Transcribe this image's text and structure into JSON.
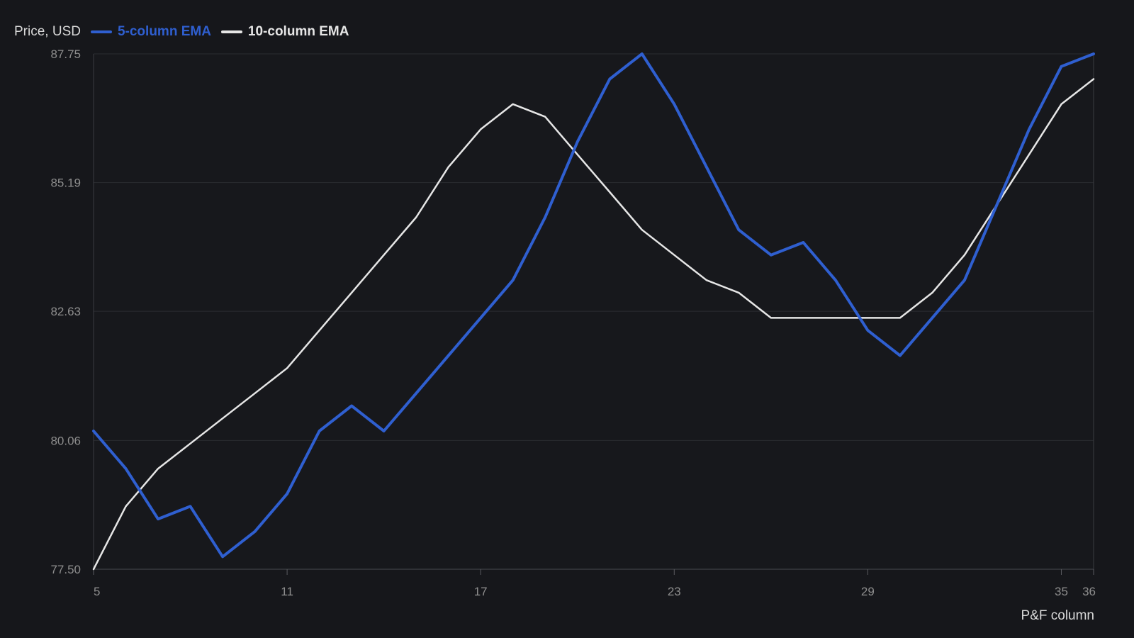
{
  "chart_data": {
    "type": "line",
    "ylabel": "Price, USD",
    "xlabel": "P&F column",
    "ylim": [
      77.5,
      87.75
    ],
    "xlim": [
      5,
      36
    ],
    "y_ticks": [
      "77.50",
      "80.06",
      "82.63",
      "85.19",
      "87.75"
    ],
    "x_ticks": [
      5,
      11,
      17,
      23,
      29,
      35,
      36
    ],
    "grid": "horizontal",
    "legend_position": "top-left",
    "series": [
      {
        "name": "5-column EMA",
        "color": "#2f5fd0",
        "x": [
          5,
          6,
          7,
          8,
          9,
          10,
          11,
          12,
          13,
          14,
          15,
          16,
          17,
          18,
          19,
          20,
          21,
          22,
          23,
          24,
          25,
          26,
          27,
          28,
          29,
          30,
          31,
          32,
          33,
          34,
          35,
          36
        ],
        "values": [
          80.25,
          79.5,
          78.5,
          78.75,
          77.75,
          78.25,
          79.0,
          80.25,
          80.75,
          80.25,
          81.0,
          81.75,
          82.5,
          83.25,
          84.5,
          86.0,
          87.25,
          87.75,
          86.75,
          85.5,
          84.25,
          83.75,
          84.0,
          83.25,
          82.25,
          81.75,
          82.5,
          83.25,
          84.75,
          86.25,
          87.5,
          87.75
        ]
      },
      {
        "name": "10-column EMA",
        "color": "#e6e6e6",
        "x": [
          5,
          6,
          7,
          8,
          9,
          10,
          11,
          12,
          13,
          14,
          15,
          16,
          17,
          18,
          19,
          20,
          21,
          22,
          23,
          24,
          25,
          26,
          27,
          28,
          29,
          30,
          31,
          32,
          33,
          34,
          35,
          36
        ],
        "values": [
          77.5,
          78.75,
          79.5,
          80.0,
          80.5,
          81.0,
          81.5,
          82.25,
          83.0,
          83.75,
          84.5,
          85.5,
          86.25,
          86.75,
          86.5,
          85.75,
          85.0,
          84.25,
          83.75,
          83.25,
          83.0,
          82.5,
          82.5,
          82.5,
          82.5,
          82.5,
          83.0,
          83.75,
          84.75,
          85.75,
          86.75,
          87.25
        ]
      }
    ]
  }
}
